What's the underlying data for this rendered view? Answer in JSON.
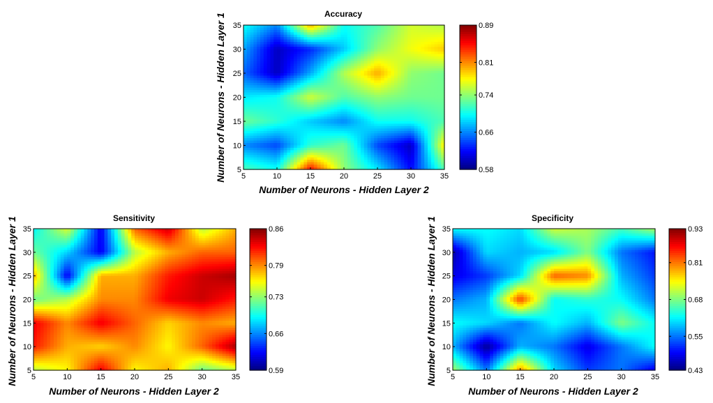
{
  "chart_data": [
    {
      "type": "heatmap",
      "title": "Accuracy",
      "xlabel": "Number of Neurons - Hidden Layer 2",
      "ylabel": "Number of Neurons - Hidden Layer 1",
      "x": [
        5,
        10,
        15,
        20,
        25,
        30,
        35
      ],
      "y": [
        5,
        10,
        15,
        20,
        25,
        30,
        35
      ],
      "xlim": [
        5,
        35
      ],
      "ylim": [
        5,
        35
      ],
      "x_ticks": [
        "5",
        "10",
        "15",
        "20",
        "25",
        "30",
        "35"
      ],
      "y_ticks": [
        "5",
        "10",
        "15",
        "20",
        "25",
        "30",
        "35"
      ],
      "z": [
        [
          0.72,
          0.7,
          0.85,
          0.74,
          0.69,
          0.62,
          0.72
        ],
        [
          0.66,
          0.64,
          0.71,
          0.73,
          0.64,
          0.6,
          0.78
        ],
        [
          0.73,
          0.71,
          0.68,
          0.66,
          0.7,
          0.7,
          0.72
        ],
        [
          0.69,
          0.7,
          0.76,
          0.72,
          0.74,
          0.73,
          0.73
        ],
        [
          0.65,
          0.6,
          0.67,
          0.75,
          0.8,
          0.74,
          0.73
        ],
        [
          0.67,
          0.6,
          0.63,
          0.68,
          0.74,
          0.77,
          0.79
        ],
        [
          0.7,
          0.66,
          0.8,
          0.7,
          0.72,
          0.76,
          0.75
        ]
      ],
      "colorbar": {
        "min": 0.58,
        "max": 0.89,
        "ticks": [
          "0.58",
          "0.66",
          "0.74",
          "0.81",
          "0.89"
        ]
      },
      "colormap": "jet",
      "grid": false
    },
    {
      "type": "heatmap",
      "title": "Sensitivity",
      "xlabel": "Number of Neurons - Hidden Layer 2",
      "ylabel": "Number of Neurons - Hidden Layer 1",
      "x": [
        5,
        10,
        15,
        20,
        25,
        30,
        35
      ],
      "y": [
        5,
        10,
        15,
        20,
        25,
        30,
        35
      ],
      "xlim": [
        5,
        35
      ],
      "ylim": [
        5,
        35
      ],
      "x_ticks": [
        "5",
        "10",
        "15",
        "20",
        "25",
        "30",
        "35"
      ],
      "y_ticks": [
        "5",
        "10",
        "15",
        "20",
        "25",
        "30",
        "35"
      ],
      "z": [
        [
          0.74,
          0.76,
          0.83,
          0.76,
          0.78,
          0.72,
          0.74
        ],
        [
          0.82,
          0.78,
          0.77,
          0.79,
          0.76,
          0.8,
          0.85
        ],
        [
          0.83,
          0.79,
          0.83,
          0.8,
          0.77,
          0.79,
          0.78
        ],
        [
          0.72,
          0.74,
          0.79,
          0.79,
          0.83,
          0.84,
          0.82
        ],
        [
          0.78,
          0.62,
          0.78,
          0.78,
          0.82,
          0.84,
          0.85
        ],
        [
          0.72,
          0.68,
          0.62,
          0.74,
          0.78,
          0.8,
          0.8
        ],
        [
          0.69,
          0.75,
          0.62,
          0.8,
          0.84,
          0.74,
          0.78
        ]
      ],
      "colorbar": {
        "min": 0.59,
        "max": 0.86,
        "ticks": [
          "0.59",
          "0.66",
          "0.73",
          "0.79",
          "0.86"
        ]
      },
      "colormap": "jet",
      "grid": false
    },
    {
      "type": "heatmap",
      "title": "Specificity",
      "xlabel": "Number of Neurons - Hidden Layer 2",
      "ylabel": "Number of Neurons - Hidden Layer 1",
      "x": [
        5,
        10,
        15,
        20,
        25,
        30,
        35
      ],
      "y": [
        5,
        10,
        15,
        20,
        25,
        30,
        35
      ],
      "xlim": [
        5,
        35
      ],
      "ylim": [
        5,
        35
      ],
      "x_ticks": [
        "5",
        "10",
        "15",
        "20",
        "25",
        "30",
        "35"
      ],
      "y_ticks": [
        "5",
        "10",
        "15",
        "20",
        "25",
        "30",
        "35"
      ],
      "z": [
        [
          0.7,
          0.55,
          0.8,
          0.6,
          0.52,
          0.55,
          0.48
        ],
        [
          0.58,
          0.44,
          0.58,
          0.55,
          0.48,
          0.55,
          0.62
        ],
        [
          0.62,
          0.6,
          0.55,
          0.62,
          0.58,
          0.68,
          0.62
        ],
        [
          0.55,
          0.58,
          0.84,
          0.62,
          0.64,
          0.62,
          0.55
        ],
        [
          0.48,
          0.52,
          0.6,
          0.82,
          0.8,
          0.58,
          0.52
        ],
        [
          0.45,
          0.6,
          0.58,
          0.6,
          0.68,
          0.55,
          0.5
        ],
        [
          0.62,
          0.62,
          0.6,
          0.72,
          0.7,
          0.65,
          0.7
        ]
      ],
      "colorbar": {
        "min": 0.43,
        "max": 0.93,
        "ticks": [
          "0.43",
          "0.55",
          "0.68",
          "0.81",
          "0.93"
        ]
      },
      "colormap": "jet",
      "grid": false
    }
  ]
}
